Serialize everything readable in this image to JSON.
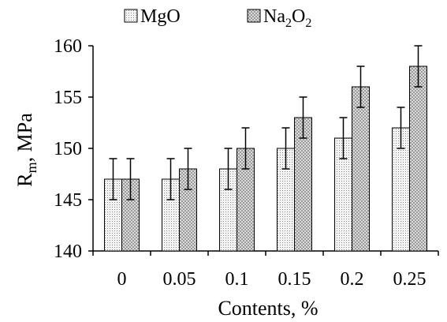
{
  "chart_data": {
    "type": "bar",
    "categories": [
      "0",
      "0.05",
      "0.1",
      "0.15",
      "0.2",
      "0.25"
    ],
    "series": [
      {
        "name": "MgO",
        "values": [
          147,
          147,
          148,
          150,
          151,
          152
        ],
        "errors": [
          2,
          2,
          2,
          2,
          2,
          2
        ],
        "color": "#f4f4f4",
        "pattern": "dots"
      },
      {
        "name": "Na2O2",
        "name_parts": [
          "Na",
          "2",
          "O",
          "2"
        ],
        "values": [
          147,
          148,
          150,
          153,
          156,
          158
        ],
        "errors": [
          2,
          2,
          2,
          2,
          2,
          2
        ],
        "color": "#c8c8c8",
        "pattern": "checker"
      }
    ],
    "xlabel": "Contents, %",
    "ylabel": "R",
    "ylabel_sub": "m",
    "ylabel_unit": ", MPa",
    "ylim": [
      140,
      160
    ],
    "yticks": [
      "140",
      "145",
      "150",
      "155",
      "160"
    ],
    "grid": false,
    "legend_position": "top"
  }
}
